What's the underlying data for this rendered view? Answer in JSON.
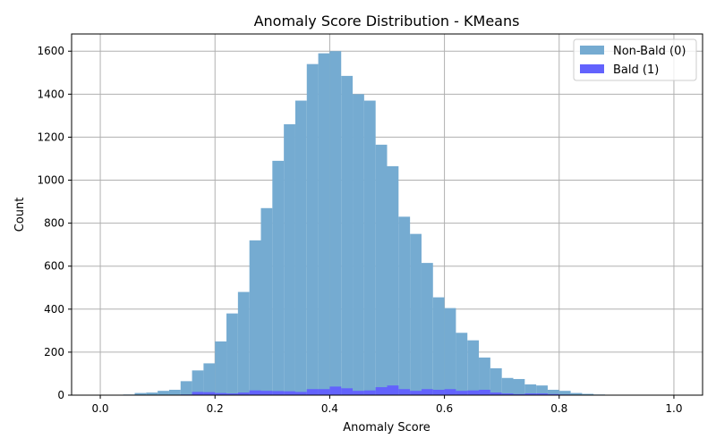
{
  "chart_data": {
    "type": "bar",
    "subtype": "histogram-overlay",
    "title": "Anomaly Score Distribution - KMeans",
    "xlabel": "Anomaly Score",
    "ylabel": "Count",
    "xlim": [
      -0.05,
      1.05
    ],
    "ylim": [
      0,
      1680
    ],
    "grid": true,
    "legend_position": "top-right",
    "bin_width": 0.02,
    "xticks": [
      "0.0",
      "0.2",
      "0.4",
      "0.6",
      "0.8",
      "1.0"
    ],
    "yticks": [
      "0",
      "200",
      "400",
      "600",
      "800",
      "1000",
      "1200",
      "1400",
      "1600"
    ],
    "series": [
      {
        "name": "Non-Bald (0)",
        "color": "#75abd1",
        "bin_starts": [
          0.0,
          0.02,
          0.04,
          0.06,
          0.08,
          0.1,
          0.12,
          0.14,
          0.16,
          0.18,
          0.2,
          0.22,
          0.24,
          0.26,
          0.28,
          0.3,
          0.32,
          0.34,
          0.36,
          0.38,
          0.4,
          0.42,
          0.44,
          0.46,
          0.48,
          0.5,
          0.52,
          0.54,
          0.56,
          0.58,
          0.6,
          0.62,
          0.64,
          0.66,
          0.68,
          0.7,
          0.72,
          0.74,
          0.76,
          0.78,
          0.8,
          0.82,
          0.84,
          0.86,
          0.88,
          0.9,
          0.92,
          0.94,
          0.96,
          0.98
        ],
        "values": [
          2,
          0,
          3,
          10,
          12,
          20,
          25,
          65,
          115,
          148,
          250,
          380,
          480,
          720,
          870,
          1090,
          1260,
          1370,
          1540,
          1590,
          1600,
          1485,
          1400,
          1370,
          1165,
          1065,
          830,
          750,
          615,
          455,
          405,
          290,
          255,
          175,
          125,
          80,
          75,
          50,
          45,
          25,
          20,
          10,
          6,
          3,
          2,
          1,
          2,
          0,
          0,
          1
        ]
      },
      {
        "name": "Bald (1)",
        "color": "#6262fd",
        "bin_starts": [
          0.0,
          0.02,
          0.04,
          0.06,
          0.08,
          0.1,
          0.12,
          0.14,
          0.16,
          0.18,
          0.2,
          0.22,
          0.24,
          0.26,
          0.28,
          0.3,
          0.32,
          0.34,
          0.36,
          0.38,
          0.4,
          0.42,
          0.44,
          0.46,
          0.48,
          0.5,
          0.52,
          0.54,
          0.56,
          0.58,
          0.6,
          0.62,
          0.64,
          0.66,
          0.68,
          0.7,
          0.72,
          0.74,
          0.76,
          0.78,
          0.8,
          0.82,
          0.84,
          0.86,
          0.88,
          0.9,
          0.92,
          0.94,
          0.96,
          0.98
        ],
        "values": [
          0,
          0,
          0,
          0,
          0,
          2,
          0,
          3,
          15,
          14,
          10,
          8,
          12,
          22,
          20,
          19,
          18,
          15,
          28,
          28,
          40,
          32,
          20,
          22,
          37,
          45,
          28,
          20,
          28,
          25,
          28,
          20,
          22,
          25,
          12,
          8,
          5,
          8,
          8,
          5,
          3,
          2,
          2,
          2,
          0,
          0,
          0,
          0,
          0,
          0
        ]
      }
    ]
  }
}
